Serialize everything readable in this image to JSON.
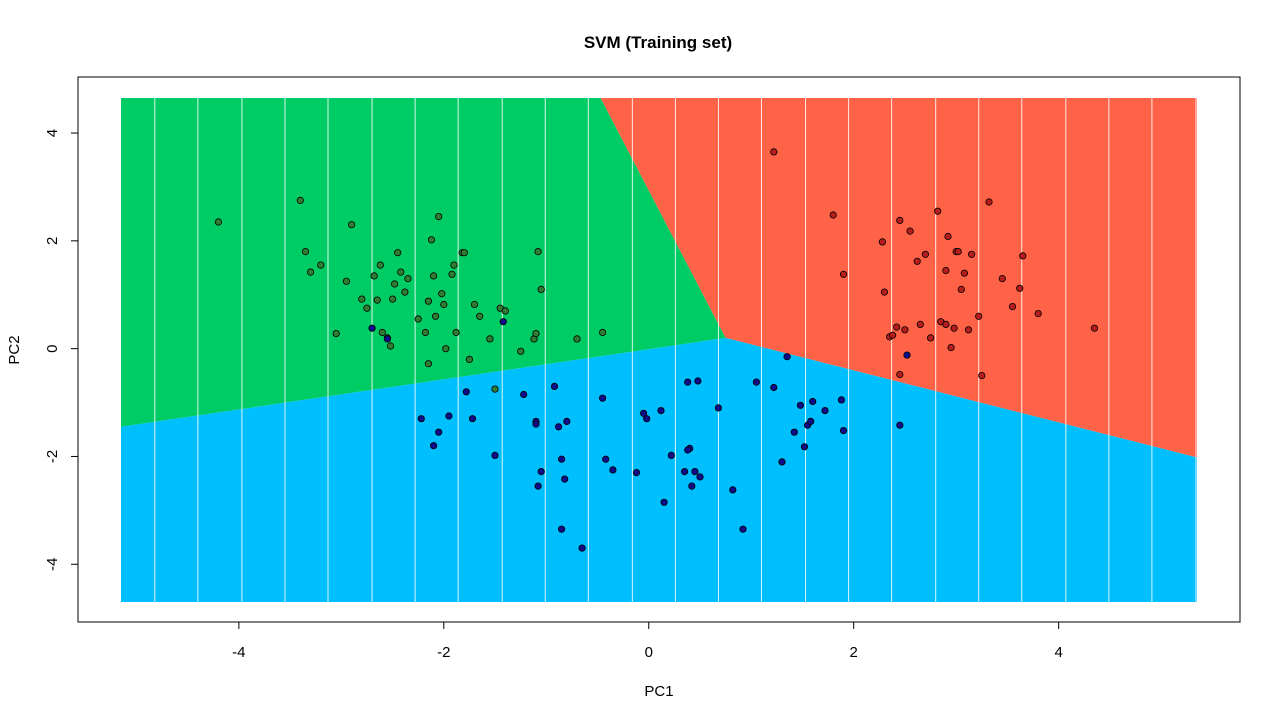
{
  "chart_data": {
    "type": "scatter",
    "title": "SVM (Training set)",
    "xlabel": "PC1",
    "ylabel": "PC2",
    "xlim": [
      -5.15,
      5.35
    ],
    "ylim": [
      -4.7,
      4.65
    ],
    "xticks": [
      -4,
      -2,
      0,
      2,
      4
    ],
    "yticks": [
      -4,
      -2,
      0,
      2,
      4
    ],
    "xtick_labels": [
      "-4",
      "-2",
      "0",
      "2",
      "4"
    ],
    "ytick_labels": [
      "-4",
      "-2",
      "0",
      "2",
      "4"
    ],
    "grid": false,
    "background_grid_lines_x": [
      -4.82,
      -4.4,
      -3.97,
      -3.55,
      -3.13,
      -2.7,
      -2.28,
      -1.86,
      -1.43,
      -1.01,
      -0.59,
      -0.16,
      0.26,
      0.68,
      1.1,
      1.53,
      1.95,
      2.37,
      2.8,
      3.22,
      3.64,
      4.07,
      4.49,
      4.91,
      5.34
    ],
    "regions": [
      {
        "class": "green",
        "color": "#00CC66",
        "polygon": [
          [
            -5.15,
            4.65
          ],
          [
            -0.47,
            4.65
          ],
          [
            0.75,
            0.2
          ],
          [
            -5.15,
            -1.45
          ]
        ]
      },
      {
        "class": "red",
        "color": "#FF6347",
        "polygon": [
          [
            -0.47,
            4.65
          ],
          [
            5.35,
            4.65
          ],
          [
            5.35,
            -2.02
          ],
          [
            0.75,
            0.2
          ]
        ]
      },
      {
        "class": "blue",
        "color": "#00BFFF",
        "polygon": [
          [
            -5.15,
            -1.45
          ],
          [
            0.75,
            0.2
          ],
          [
            5.35,
            -2.02
          ],
          [
            5.35,
            -4.7
          ],
          [
            -5.15,
            -4.7
          ]
        ]
      }
    ],
    "series": [
      {
        "color": "#2E7D32",
        "points": [
          [
            -4.2,
            2.35
          ],
          [
            -3.4,
            2.75
          ],
          [
            -3.35,
            1.8
          ],
          [
            -3.3,
            1.42
          ],
          [
            -3.2,
            1.55
          ],
          [
            -3.05,
            0.28
          ],
          [
            -2.95,
            1.25
          ],
          [
            -2.9,
            2.3
          ],
          [
            -2.8,
            0.92
          ],
          [
            -2.75,
            0.75
          ],
          [
            -2.68,
            1.35
          ],
          [
            -2.65,
            0.9
          ],
          [
            -2.62,
            1.55
          ],
          [
            -2.6,
            0.3
          ],
          [
            -2.55,
            0.2
          ],
          [
            -2.52,
            0.05
          ],
          [
            -2.5,
            0.92
          ],
          [
            -2.48,
            1.2
          ],
          [
            -2.45,
            1.78
          ],
          [
            -2.42,
            1.42
          ],
          [
            -2.38,
            1.05
          ],
          [
            -2.35,
            1.3
          ],
          [
            -2.25,
            0.55
          ],
          [
            -2.18,
            0.3
          ],
          [
            -2.15,
            0.88
          ],
          [
            -2.12,
            2.02
          ],
          [
            -2.1,
            1.35
          ],
          [
            -2.08,
            0.6
          ],
          [
            -2.05,
            2.45
          ],
          [
            -2.02,
            1.02
          ],
          [
            -2.0,
            0.82
          ],
          [
            -1.98,
            0.0
          ],
          [
            -1.92,
            1.38
          ],
          [
            -1.9,
            1.55
          ],
          [
            -1.88,
            0.3
          ],
          [
            -1.82,
            1.78
          ],
          [
            -1.8,
            1.78
          ],
          [
            -1.75,
            -0.2
          ],
          [
            -1.7,
            0.82
          ],
          [
            -1.65,
            0.6
          ],
          [
            -1.55,
            0.18
          ],
          [
            -1.45,
            0.75
          ],
          [
            -1.4,
            0.7
          ],
          [
            -1.25,
            -0.05
          ],
          [
            -1.12,
            0.18
          ],
          [
            -1.1,
            0.28
          ],
          [
            -1.08,
            1.8
          ],
          [
            -1.05,
            1.1
          ],
          [
            -0.7,
            0.18
          ],
          [
            -0.45,
            0.3
          ],
          [
            -2.15,
            -0.28
          ],
          [
            -1.5,
            -0.75
          ]
        ]
      },
      {
        "color": "#B71C1C",
        "points": [
          [
            1.22,
            3.65
          ],
          [
            1.8,
            2.48
          ],
          [
            1.9,
            1.38
          ],
          [
            2.28,
            1.98
          ],
          [
            2.3,
            1.05
          ],
          [
            2.35,
            0.22
          ],
          [
            2.38,
            0.25
          ],
          [
            2.42,
            0.4
          ],
          [
            2.45,
            2.38
          ],
          [
            2.5,
            0.35
          ],
          [
            2.55,
            2.18
          ],
          [
            2.62,
            1.62
          ],
          [
            2.65,
            0.45
          ],
          [
            2.7,
            1.75
          ],
          [
            2.75,
            0.2
          ],
          [
            2.82,
            2.55
          ],
          [
            2.85,
            0.5
          ],
          [
            2.9,
            1.45
          ],
          [
            2.92,
            2.08
          ],
          [
            2.95,
            0.02
          ],
          [
            2.98,
            0.38
          ],
          [
            3.0,
            1.8
          ],
          [
            3.02,
            1.8
          ],
          [
            3.05,
            1.1
          ],
          [
            3.08,
            1.4
          ],
          [
            3.12,
            0.35
          ],
          [
            3.15,
            1.75
          ],
          [
            3.22,
            0.6
          ],
          [
            3.25,
            -0.5
          ],
          [
            3.32,
            2.72
          ],
          [
            3.45,
            1.3
          ],
          [
            3.55,
            0.78
          ],
          [
            3.62,
            1.12
          ],
          [
            3.65,
            1.72
          ],
          [
            3.8,
            0.65
          ],
          [
            4.35,
            0.38
          ],
          [
            2.45,
            -0.48
          ],
          [
            2.9,
            0.45
          ]
        ]
      },
      {
        "color": "#0D0D8C",
        "points": [
          [
            -2.7,
            0.38
          ],
          [
            -2.55,
            0.18
          ],
          [
            -1.42,
            0.5
          ],
          [
            -2.22,
            -1.3
          ],
          [
            -2.1,
            -1.8
          ],
          [
            -2.05,
            -1.55
          ],
          [
            -1.95,
            -1.25
          ],
          [
            -1.78,
            -0.8
          ],
          [
            -1.72,
            -1.3
          ],
          [
            -1.5,
            -1.98
          ],
          [
            -1.22,
            -0.85
          ],
          [
            -1.1,
            -1.35
          ],
          [
            -1.08,
            -2.55
          ],
          [
            -1.05,
            -2.28
          ],
          [
            -0.92,
            -0.7
          ],
          [
            -0.88,
            -1.45
          ],
          [
            -0.85,
            -3.35
          ],
          [
            -0.85,
            -2.05
          ],
          [
            -0.82,
            -2.42
          ],
          [
            -0.8,
            -1.35
          ],
          [
            -0.65,
            -3.7
          ],
          [
            -0.45,
            -0.92
          ],
          [
            -0.42,
            -2.05
          ],
          [
            -0.35,
            -2.25
          ],
          [
            -0.12,
            -2.3
          ],
          [
            -0.05,
            -1.2
          ],
          [
            -0.02,
            -1.3
          ],
          [
            0.12,
            -1.15
          ],
          [
            0.15,
            -2.85
          ],
          [
            0.22,
            -1.98
          ],
          [
            0.35,
            -2.28
          ],
          [
            0.38,
            -0.62
          ],
          [
            0.4,
            -1.85
          ],
          [
            0.42,
            -2.55
          ],
          [
            0.45,
            -2.28
          ],
          [
            0.48,
            -0.6
          ],
          [
            0.5,
            -2.38
          ],
          [
            0.68,
            -1.1
          ],
          [
            0.82,
            -2.62
          ],
          [
            0.92,
            -3.35
          ],
          [
            1.05,
            -0.62
          ],
          [
            1.22,
            -0.72
          ],
          [
            1.3,
            -2.1
          ],
          [
            1.35,
            -0.15
          ],
          [
            1.42,
            -1.55
          ],
          [
            1.48,
            -1.05
          ],
          [
            1.52,
            -1.82
          ],
          [
            1.55,
            -1.42
          ],
          [
            1.58,
            -1.35
          ],
          [
            1.6,
            -0.98
          ],
          [
            1.72,
            -1.15
          ],
          [
            1.88,
            -0.95
          ],
          [
            1.9,
            -1.52
          ],
          [
            2.45,
            -1.42
          ],
          [
            2.52,
            -0.12
          ],
          [
            -1.1,
            -1.4
          ],
          [
            0.38,
            -1.88
          ]
        ]
      }
    ]
  }
}
